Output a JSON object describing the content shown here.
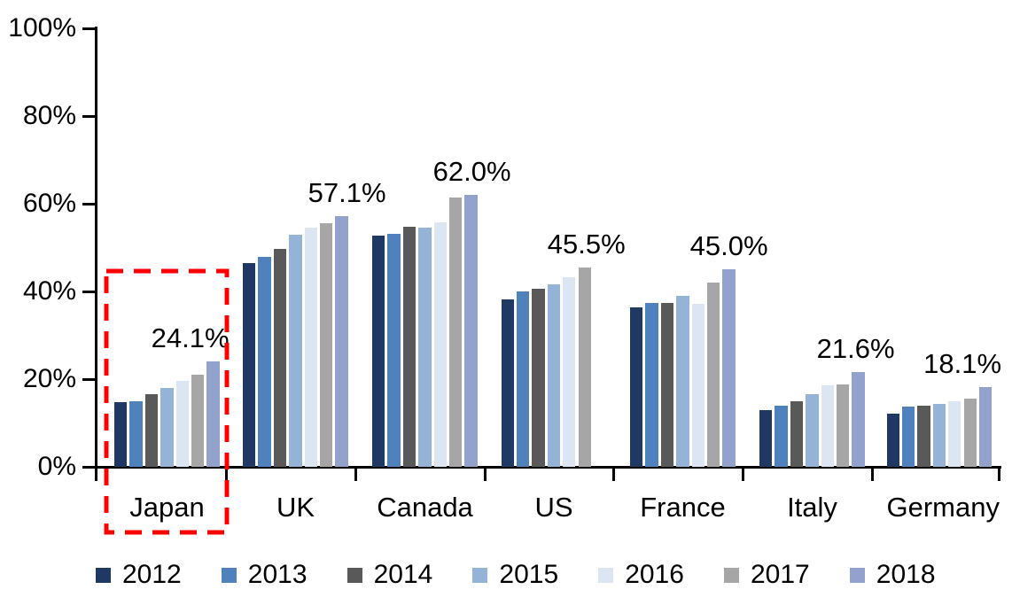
{
  "chart_data": {
    "type": "bar",
    "title": "",
    "categories": [
      "Japan",
      "UK",
      "Canada",
      "US",
      "France",
      "Italy",
      "Germany"
    ],
    "series": [
      {
        "name": "2012",
        "color": "#1F3864",
        "values": [
          14.7,
          46.4,
          52.8,
          38.1,
          36.3,
          12.9,
          12.1
        ]
      },
      {
        "name": "2013",
        "color": "#4F81BD",
        "values": [
          14.9,
          47.8,
          53.2,
          39.9,
          37.3,
          13.9,
          13.7
        ]
      },
      {
        "name": "2014",
        "color": "#595959",
        "values": [
          16.5,
          49.6,
          54.8,
          40.7,
          37.3,
          14.9,
          13.9
        ]
      },
      {
        "name": "2015",
        "color": "#95B3D7",
        "values": [
          17.9,
          53.0,
          54.6,
          41.7,
          38.9,
          16.5,
          14.3
        ]
      },
      {
        "name": "2016",
        "color": "#DCE6F2",
        "values": [
          19.6,
          54.6,
          55.8,
          43.3,
          37.1,
          18.5,
          14.9
        ]
      },
      {
        "name": "2017",
        "color": "#A6A6A6",
        "values": [
          21.0,
          55.6,
          61.5,
          45.5,
          42.1,
          18.8,
          15.5
        ]
      },
      {
        "name": "2018",
        "color": "#92A2CC",
        "values": [
          24.1,
          57.1,
          62.0,
          null,
          45.0,
          21.6,
          18.1
        ]
      }
    ],
    "data_labels": [
      "24.1%",
      "57.1%",
      "62.0%",
      "45.5%",
      "45.0%",
      "21.6%",
      "18.1%"
    ],
    "y_axis": {
      "ticks": [
        "100%",
        "80%",
        "60%",
        "40%",
        "20%",
        "0%"
      ],
      "min": 0,
      "max": 100
    },
    "grid": false,
    "legend_position": "bottom",
    "annotations": [
      {
        "type": "dashed-rectangle",
        "target_category": "Japan",
        "color": "#FF0000"
      }
    ],
    "colors": {
      "axis": "#000000",
      "text": "#000000",
      "background": "#FFFFFF"
    }
  }
}
